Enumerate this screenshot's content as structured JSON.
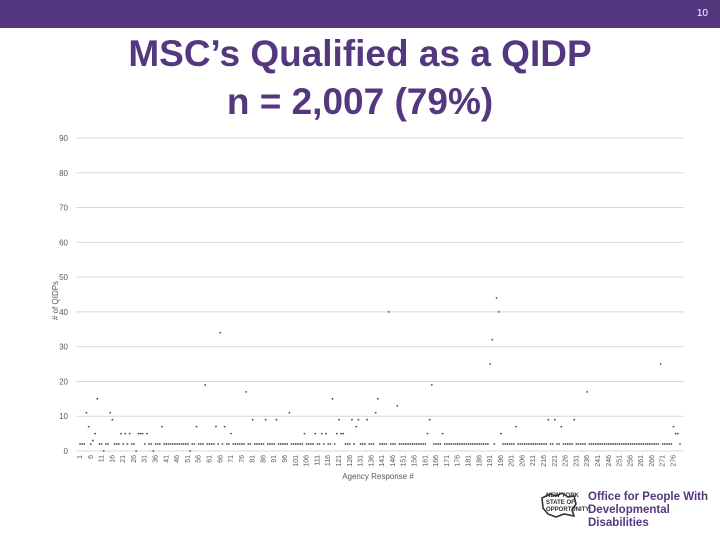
{
  "slide": {
    "number": "10"
  },
  "title": {
    "line1": "MSC’s Qualified as a QIDP",
    "line2": "n = 2,007 (79%)"
  },
  "chart_data": {
    "type": "scatter",
    "xlabel": "Agency Response #",
    "ylabel": "# of QIDPs",
    "ylim": [
      0,
      90
    ],
    "yticks": [
      0,
      10,
      20,
      30,
      40,
      50,
      60,
      70,
      80,
      90
    ],
    "grid": true,
    "x_tick_labels": [
      "1",
      "6",
      "11",
      "16",
      "21",
      "26",
      "31",
      "36",
      "41",
      "46",
      "51",
      "56",
      "61",
      "66",
      "71",
      "76",
      "81",
      "86",
      "91",
      "96",
      "101",
      "106",
      "111",
      "116",
      "121",
      "126",
      "131",
      "136",
      "141",
      "146",
      "151",
      "156",
      "161",
      "166",
      "171",
      "176",
      "181",
      "186",
      "191",
      "196",
      "201",
      "206",
      "211",
      "216",
      "221",
      "226",
      "231",
      "236",
      "241",
      "246",
      "251",
      "256",
      "261",
      "266",
      "271",
      "276"
    ],
    "xlim": [
      1,
      279
    ],
    "series": [
      {
        "x": [
          1,
          2,
          3,
          4,
          5,
          6,
          7,
          8,
          9,
          10,
          11,
          12,
          13,
          14,
          15,
          16,
          17,
          18,
          19,
          20,
          21,
          22,
          23,
          24,
          25,
          26,
          27,
          28,
          29,
          30,
          31,
          32,
          33,
          34,
          35,
          36,
          37,
          38,
          39,
          40
        ],
        "y": [
          2,
          2,
          2,
          11,
          7,
          2,
          3,
          5,
          15,
          2,
          2,
          0,
          2,
          2,
          11,
          9,
          2,
          2,
          2,
          5,
          2,
          5,
          2,
          5,
          2,
          2,
          0,
          5,
          5,
          5,
          2,
          5,
          2,
          2,
          0,
          2,
          2,
          2,
          7,
          2
        ]
      },
      {
        "x": [
          41,
          42,
          43,
          44,
          45,
          46,
          47,
          48,
          49,
          50,
          51,
          52,
          53,
          54,
          55,
          56,
          57,
          58,
          59,
          60,
          61,
          62,
          63,
          64,
          65,
          66,
          67,
          68,
          69,
          70,
          71,
          72,
          73,
          74,
          75,
          76,
          77,
          78,
          79,
          80
        ],
        "y": [
          2,
          2,
          2,
          2,
          2,
          2,
          2,
          2,
          2,
          2,
          2,
          0,
          2,
          2,
          7,
          2,
          2,
          2,
          19,
          2,
          2,
          2,
          2,
          7,
          2,
          34,
          2,
          7,
          2,
          2,
          5,
          2,
          2,
          2,
          2,
          2,
          2,
          17,
          2,
          2
        ]
      },
      {
        "x": [
          81,
          82,
          83,
          84,
          85,
          86,
          87,
          88,
          89,
          90,
          91,
          92,
          93,
          94,
          95,
          96,
          97,
          98,
          99,
          100,
          101,
          102,
          103,
          104,
          105,
          106,
          107,
          108,
          109,
          110,
          111,
          112,
          113,
          114,
          115,
          116,
          117,
          118,
          119,
          120
        ],
        "y": [
          9,
          2,
          2,
          2,
          2,
          2,
          9,
          2,
          2,
          2,
          2,
          9,
          2,
          2,
          2,
          2,
          2,
          11,
          2,
          2,
          2,
          2,
          2,
          2,
          5,
          2,
          2,
          2,
          2,
          5,
          2,
          2,
          5,
          2,
          5,
          2,
          2,
          15,
          2,
          5
        ]
      },
      {
        "x": [
          121,
          122,
          123,
          124,
          125,
          126,
          127,
          128,
          129,
          130,
          131,
          132,
          133,
          134,
          135,
          136,
          137,
          138,
          139,
          140,
          141,
          142,
          143,
          144,
          145,
          146,
          147,
          148,
          149,
          150,
          151,
          152,
          153,
          154,
          155,
          156,
          157,
          158,
          159,
          160
        ],
        "y": [
          9,
          5,
          5,
          2,
          2,
          2,
          9,
          2,
          7,
          9,
          2,
          2,
          2,
          9,
          2,
          2,
          2,
          11,
          15,
          2,
          2,
          2,
          2,
          40,
          2,
          2,
          2,
          13,
          2,
          2,
          2,
          2,
          2,
          2,
          2,
          2,
          2,
          2,
          2,
          2
        ]
      },
      {
        "x": [
          161,
          162,
          163,
          164,
          165,
          166,
          167,
          168,
          169,
          170,
          171,
          172,
          173,
          174,
          175,
          176,
          177,
          178,
          179,
          180,
          181,
          182,
          183,
          184,
          185,
          186,
          187,
          188,
          189,
          190,
          191,
          192,
          193,
          194,
          195,
          196,
          197,
          198,
          199,
          200
        ],
        "y": [
          2,
          5,
          9,
          19,
          2,
          2,
          2,
          2,
          5,
          2,
          2,
          2,
          2,
          2,
          2,
          2,
          2,
          2,
          2,
          2,
          2,
          2,
          2,
          2,
          2,
          2,
          2,
          2,
          2,
          2,
          25,
          32,
          2,
          44,
          40,
          5,
          2,
          2,
          2,
          2
        ]
      },
      {
        "x": [
          201,
          202,
          203,
          204,
          205,
          206,
          207,
          208,
          209,
          210,
          211,
          212,
          213,
          214,
          215,
          216,
          217,
          218,
          219,
          220,
          221,
          222,
          223,
          224,
          225,
          226,
          227,
          228,
          229,
          230,
          231,
          232,
          233,
          234,
          235,
          236,
          237,
          238,
          239,
          240
        ],
        "y": [
          2,
          2,
          7,
          2,
          2,
          2,
          2,
          2,
          2,
          2,
          2,
          2,
          2,
          2,
          2,
          2,
          2,
          9,
          2,
          2,
          9,
          2,
          2,
          7,
          2,
          2,
          2,
          2,
          2,
          9,
          2,
          2,
          2,
          2,
          2,
          17,
          2,
          2,
          2,
          2
        ]
      },
      {
        "x": [
          241,
          242,
          243,
          244,
          245,
          246,
          247,
          248,
          249,
          250,
          251,
          252,
          253,
          254,
          255,
          256,
          257,
          258,
          259,
          260,
          261,
          262,
          263,
          264,
          265,
          266,
          267,
          268,
          269,
          270,
          271,
          272,
          273,
          274,
          275,
          276,
          277,
          278,
          279
        ],
        "y": [
          2,
          2,
          2,
          2,
          2,
          2,
          2,
          2,
          2,
          2,
          2,
          2,
          2,
          2,
          2,
          2,
          2,
          2,
          2,
          2,
          2,
          2,
          2,
          2,
          2,
          2,
          2,
          2,
          2,
          25,
          2,
          2,
          2,
          2,
          2,
          7,
          5,
          5,
          2
        ]
      }
    ]
  },
  "footer": {
    "seal_text": "NEW YORK STATE OF OPPORTUNITY",
    "org_line1": "Office for People With",
    "org_line2": "Developmental Disabilities"
  },
  "colors": {
    "brand": "#553780",
    "grid": "#d9d9d9",
    "axis_text": "#595959",
    "marker": "#4a4a4a"
  }
}
